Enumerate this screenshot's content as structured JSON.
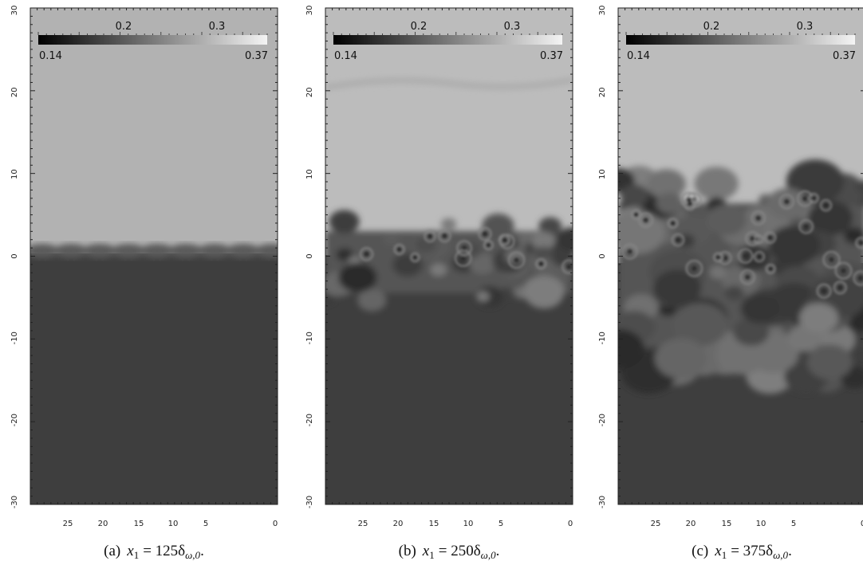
{
  "panels": [
    {
      "colorbar": {
        "ticks": [
          "0.2",
          "0.3"
        ],
        "min": "0.14",
        "max": "0.37"
      },
      "y_ticks": [
        "30",
        "20",
        "10",
        "0",
        "-10",
        "-20",
        "-30"
      ],
      "x_ticks": [
        "25",
        "20",
        "15",
        "10",
        "5",
        "0"
      ],
      "caption": {
        "label": "(a)",
        "lhs": "x",
        "lhs_sub": "1",
        "rhs": "= 125δ",
        "rhs_sub": "ω,0",
        "end": "."
      }
    },
    {
      "colorbar": {
        "ticks": [
          "0.2",
          "0.3"
        ],
        "min": "0.14",
        "max": "0.37"
      },
      "y_ticks": [
        "30",
        "20",
        "10",
        "0",
        "-10",
        "-20",
        "-30"
      ],
      "x_ticks": [
        "25",
        "20",
        "15",
        "10",
        "5",
        "0"
      ],
      "caption": {
        "label": "(b)",
        "lhs": "x",
        "lhs_sub": "1",
        "rhs": "= 250δ",
        "rhs_sub": "ω,0",
        "end": "."
      }
    },
    {
      "colorbar": {
        "ticks": [
          "0.2",
          "0.3"
        ],
        "min": "0.14",
        "max": "0.37"
      },
      "y_ticks": [
        "30",
        "20",
        "10",
        "0",
        "-10",
        "-20",
        "-30"
      ],
      "x_ticks": [
        "25",
        "20",
        "15",
        "10",
        "5",
        "0"
      ],
      "caption": {
        "label": "(c)",
        "lhs": "x",
        "lhs_sub": "1",
        "rhs": "= 375δ",
        "rhs_sub": "ω,0",
        "end": "."
      }
    }
  ]
}
